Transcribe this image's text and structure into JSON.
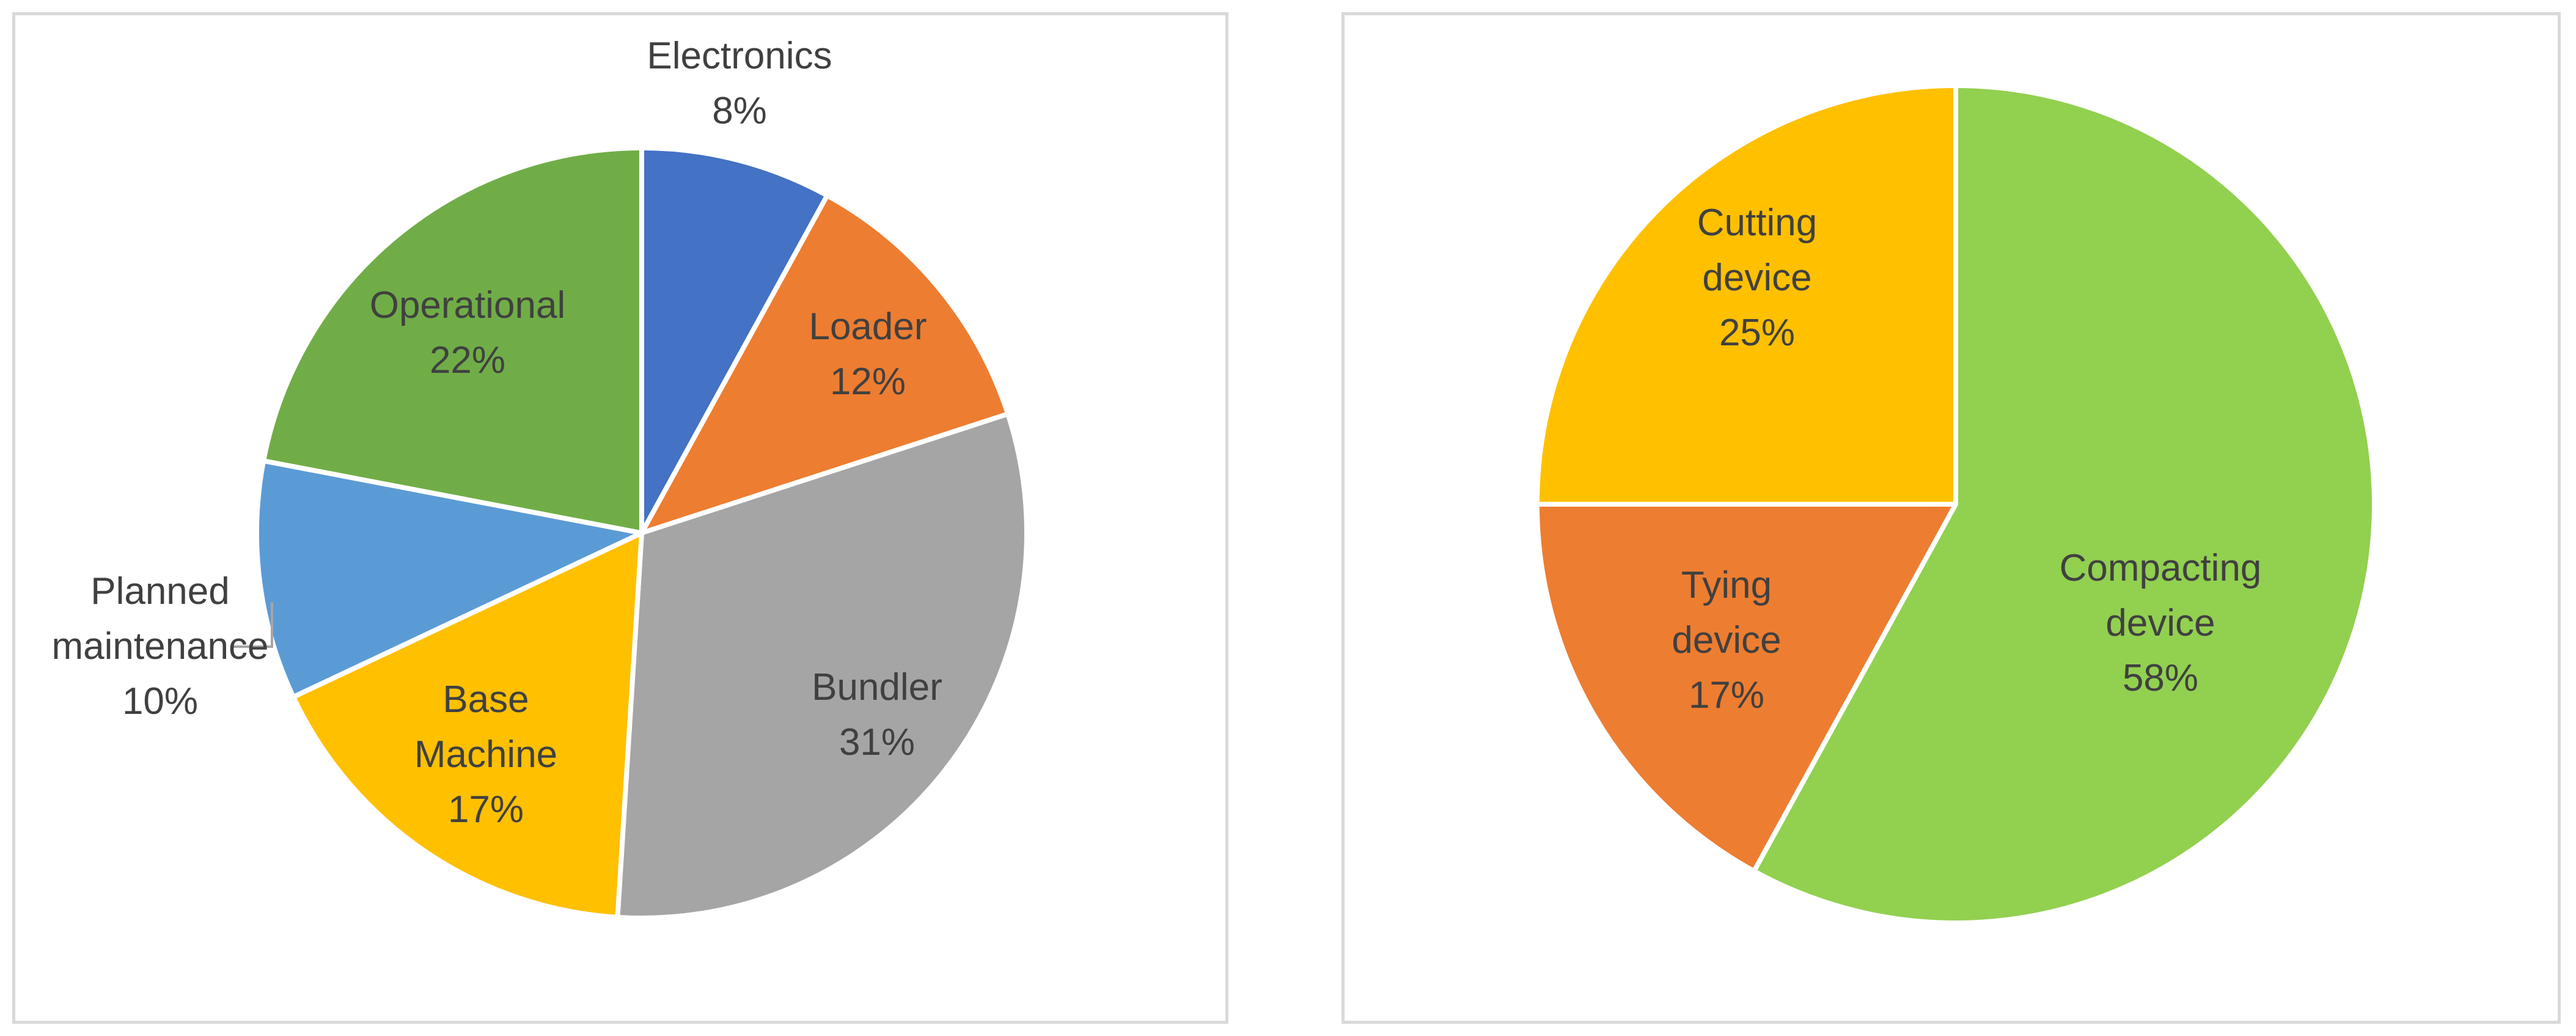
{
  "chart_data": [
    {
      "type": "pie",
      "slices": [
        {
          "label": "Electronics",
          "value": 8,
          "value_text": "8%",
          "color": "#4472c4"
        },
        {
          "label": "Loader",
          "value": 12,
          "value_text": "12%",
          "color": "#ed7d31"
        },
        {
          "label": "Bundler",
          "value": 31,
          "value_text": "31%",
          "color": "#a5a5a5"
        },
        {
          "label": "Base Machine",
          "value": 17,
          "value_text": "17%",
          "color": "#ffc000"
        },
        {
          "label": "Planned maintenance",
          "value": 10,
          "value_text": "10%",
          "color": "#5b9bd5"
        },
        {
          "label": "Operational",
          "value": 22,
          "value_text": "22%",
          "color": "#70ad47"
        }
      ]
    },
    {
      "type": "pie",
      "slices": [
        {
          "label": "Compacting device",
          "value": 58,
          "value_text": "58%",
          "color": "#92d050"
        },
        {
          "label": "Tying device",
          "value": 17,
          "value_text": "17%",
          "color": "#ed7d31"
        },
        {
          "label": "Cutting device",
          "value": 25,
          "value_text": "25%",
          "color": "#ffc000"
        }
      ]
    }
  ]
}
